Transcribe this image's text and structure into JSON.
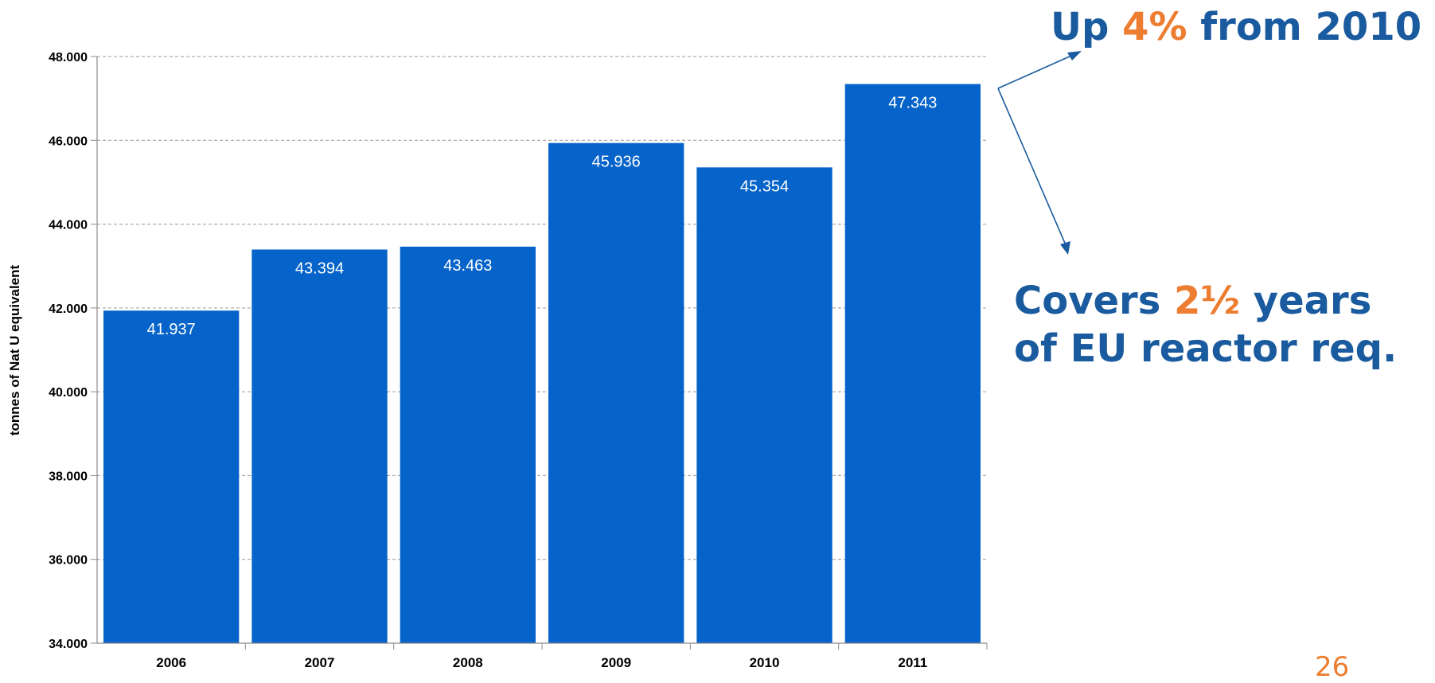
{
  "chart_data": {
    "type": "bar",
    "title": "",
    "xlabel": "",
    "ylabel": "tonnes of Nat U equivalent",
    "categories": [
      "2006",
      "2007",
      "2008",
      "2009",
      "2010",
      "2011"
    ],
    "values": [
      41937,
      43394,
      43463,
      45936,
      45354,
      47343
    ],
    "value_labels": [
      "41.937",
      "43.394",
      "43.463",
      "45.936",
      "45.354",
      "47.343"
    ],
    "ylim": [
      34000,
      48000
    ],
    "y_ticks": [
      34000,
      36000,
      38000,
      40000,
      42000,
      44000,
      46000,
      48000
    ],
    "y_tick_labels": [
      "34.000",
      "36.000",
      "38.000",
      "40.000",
      "42.000",
      "44.000",
      "46.000",
      "48.000"
    ],
    "grid": true,
    "bar_color": "#0563c9",
    "grid_color": "#9a9a9a"
  },
  "annotations": {
    "up": {
      "prefix": "Up ",
      "accent": "4%",
      "suffix": " from 2010"
    },
    "covers": {
      "prefix": "Covers ",
      "accent": "2½",
      "suffix": " years",
      "line2": "of EU reactor req."
    }
  },
  "colors": {
    "callout_text": "#1a5a9e",
    "accent": "#ed7d31",
    "arrow": "#1a5a9e"
  },
  "slide_number": "26"
}
